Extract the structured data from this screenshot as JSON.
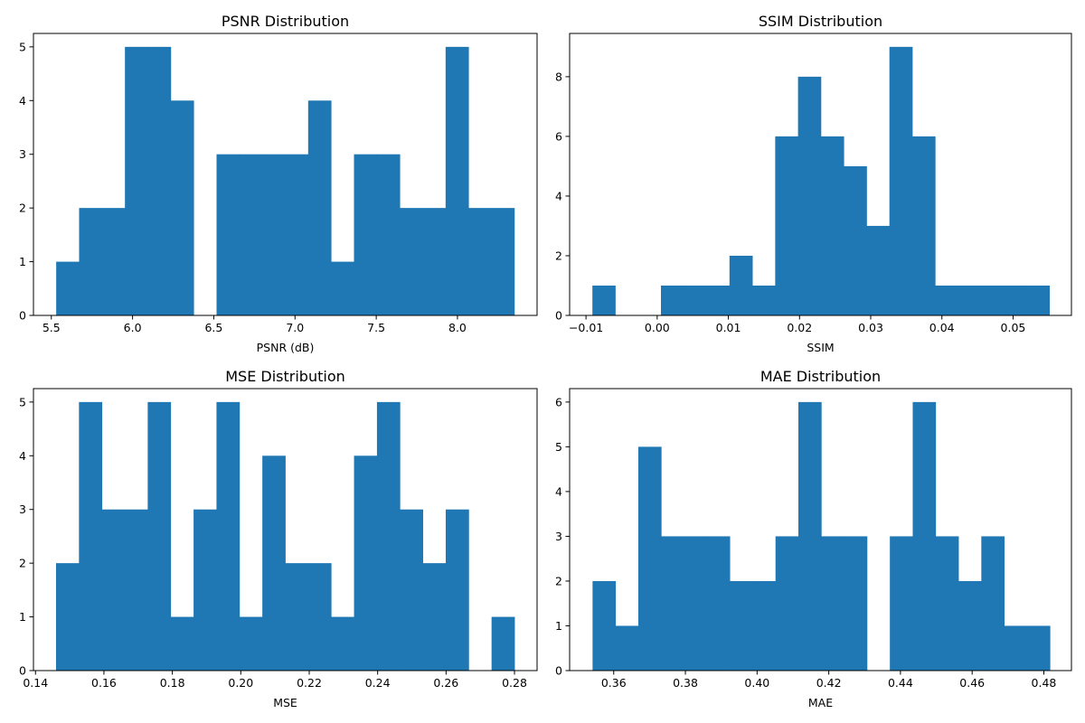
{
  "colors": {
    "bar": "#1f77b4",
    "axis": "#000000",
    "background": "#ffffff"
  },
  "chart_data": [
    {
      "type": "bar",
      "subtype": "histogram",
      "title": "PSNR Distribution",
      "xlabel": "PSNR (dB)",
      "ylabel": "",
      "xlim": [
        5.39,
        8.49
      ],
      "ylim": [
        0,
        5.25
      ],
      "xticks": [
        5.5,
        6.0,
        6.5,
        7.0,
        7.5,
        8.0
      ],
      "xtick_labels": [
        "5.5",
        "6.0",
        "6.5",
        "7.0",
        "7.5",
        "8.0"
      ],
      "yticks": [
        0,
        1,
        2,
        3,
        4,
        5
      ],
      "ytick_labels": [
        "0",
        "1",
        "2",
        "3",
        "4",
        "5"
      ],
      "bin_edges": [
        5.53,
        5.671,
        5.812,
        5.953,
        6.094,
        6.235,
        6.376,
        6.517,
        6.658,
        6.799,
        6.94,
        7.081,
        7.222,
        7.363,
        7.504,
        7.645,
        7.786,
        7.927,
        8.068,
        8.209,
        8.35
      ],
      "counts": [
        1,
        2,
        2,
        5,
        5,
        4,
        0,
        3,
        3,
        3,
        3,
        4,
        1,
        3,
        3,
        2,
        2,
        5,
        2,
        2
      ],
      "grid": false,
      "legend": "none"
    },
    {
      "type": "bar",
      "subtype": "histogram",
      "title": "SSIM Distribution",
      "xlabel": "SSIM",
      "ylabel": "",
      "xlim": [
        -0.0123,
        0.0582
      ],
      "ylim": [
        0,
        9.45
      ],
      "xticks": [
        -0.01,
        0.0,
        0.01,
        0.02,
        0.03,
        0.04,
        0.05
      ],
      "xtick_labels": [
        "−0.01",
        "0.00",
        "0.01",
        "0.02",
        "0.03",
        "0.04",
        "0.05"
      ],
      "yticks": [
        0,
        2,
        4,
        6,
        8
      ],
      "ytick_labels": [
        "0",
        "2",
        "4",
        "6",
        "8"
      ],
      "bin_edges": [
        -0.0091,
        -0.00589,
        -0.00268,
        0.00053,
        0.00374,
        0.00695,
        0.01016,
        0.01337,
        0.01658,
        0.01979,
        0.023,
        0.02621,
        0.02942,
        0.03263,
        0.03584,
        0.03905,
        0.04226,
        0.04547,
        0.04868,
        0.05189,
        0.0551
      ],
      "counts": [
        1,
        0,
        0,
        1,
        1,
        1,
        2,
        1,
        6,
        8,
        6,
        5,
        3,
        9,
        6,
        1,
        1,
        1,
        1,
        1
      ],
      "grid": false,
      "legend": "none"
    },
    {
      "type": "bar",
      "subtype": "histogram",
      "title": "MSE Distribution",
      "xlabel": "MSE",
      "ylabel": "",
      "xlim": [
        0.1394,
        0.2866
      ],
      "ylim": [
        0,
        5.25
      ],
      "xticks": [
        0.14,
        0.16,
        0.18,
        0.2,
        0.22,
        0.24,
        0.26,
        0.28
      ],
      "xtick_labels": [
        "0.14",
        "0.16",
        "0.18",
        "0.20",
        "0.22",
        "0.24",
        "0.26",
        "0.28"
      ],
      "yticks": [
        0,
        1,
        2,
        3,
        4,
        5
      ],
      "ytick_labels": [
        "0",
        "1",
        "2",
        "3",
        "4",
        "5"
      ],
      "bin_edges": [
        0.146,
        0.1527,
        0.1594,
        0.1661,
        0.1728,
        0.1795,
        0.1862,
        0.1929,
        0.1996,
        0.2063,
        0.213,
        0.2197,
        0.2264,
        0.2331,
        0.2398,
        0.2465,
        0.2532,
        0.2599,
        0.2666,
        0.2733,
        0.28
      ],
      "counts": [
        2,
        5,
        3,
        3,
        5,
        1,
        3,
        5,
        1,
        4,
        2,
        2,
        1,
        4,
        5,
        3,
        2,
        3,
        0,
        1
      ],
      "grid": false,
      "legend": "none"
    },
    {
      "type": "bar",
      "subtype": "histogram",
      "title": "MAE Distribution",
      "xlabel": "MAE",
      "ylabel": "",
      "xlim": [
        0.3477,
        0.4877
      ],
      "ylim": [
        0,
        6.3
      ],
      "xticks": [
        0.36,
        0.38,
        0.4,
        0.42,
        0.44,
        0.46,
        0.48
      ],
      "xtick_labels": [
        "0.36",
        "0.38",
        "0.40",
        "0.42",
        "0.44",
        "0.46",
        "0.48"
      ],
      "yticks": [
        0,
        1,
        2,
        3,
        4,
        5,
        6
      ],
      "ytick_labels": [
        "0",
        "1",
        "2",
        "3",
        "4",
        "5",
        "6"
      ],
      "bin_edges": [
        0.3541,
        0.36048,
        0.36686,
        0.37324,
        0.37962,
        0.386,
        0.39238,
        0.39876,
        0.40514,
        0.41152,
        0.4179,
        0.42428,
        0.43066,
        0.43704,
        0.44342,
        0.4498,
        0.45618,
        0.46256,
        0.46894,
        0.47532,
        0.4817
      ],
      "counts": [
        2,
        1,
        5,
        3,
        3,
        3,
        2,
        2,
        3,
        6,
        3,
        3,
        0,
        3,
        6,
        3,
        2,
        3,
        1,
        1
      ],
      "grid": false,
      "legend": "none"
    }
  ]
}
